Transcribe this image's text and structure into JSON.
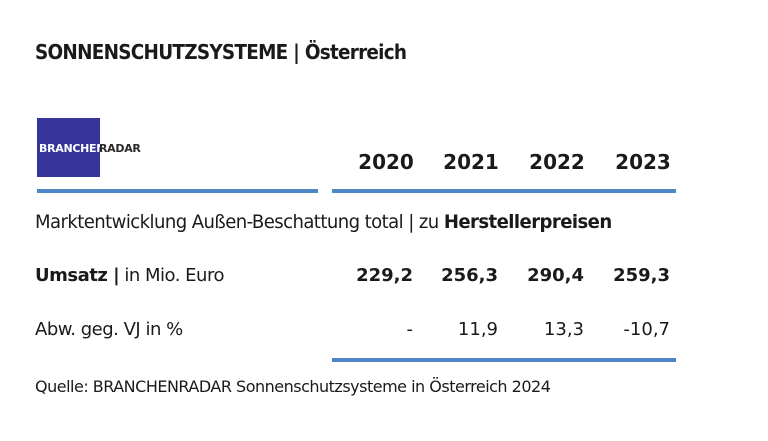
{
  "header": {
    "title": "SONNENSCHUTZSYSTEME | Österreich",
    "logo": [
      "BRANCHEN",
      "RADAR"
    ]
  },
  "table": {
    "columns": [
      "2020",
      "2021",
      "2022",
      "2023"
    ],
    "section": [
      "Marktentwicklung Außen-Beschattung total | zu ",
      "Herstellerpreisen"
    ],
    "rows": [
      {
        "label": [
          "Umsatz |",
          " in Mio. Euro"
        ],
        "cells": [
          "229,2",
          "256,3",
          "290,4",
          "259,3"
        ]
      },
      {
        "label": [
          "Abw. geg. VJ in %"
        ],
        "cells": [
          "-",
          "11,9",
          "13,3",
          "-10,7"
        ]
      }
    ]
  },
  "footer": {
    "source": "Quelle: BRANCHENRADAR Sonnenschutzsysteme in Österreich 2024"
  }
}
